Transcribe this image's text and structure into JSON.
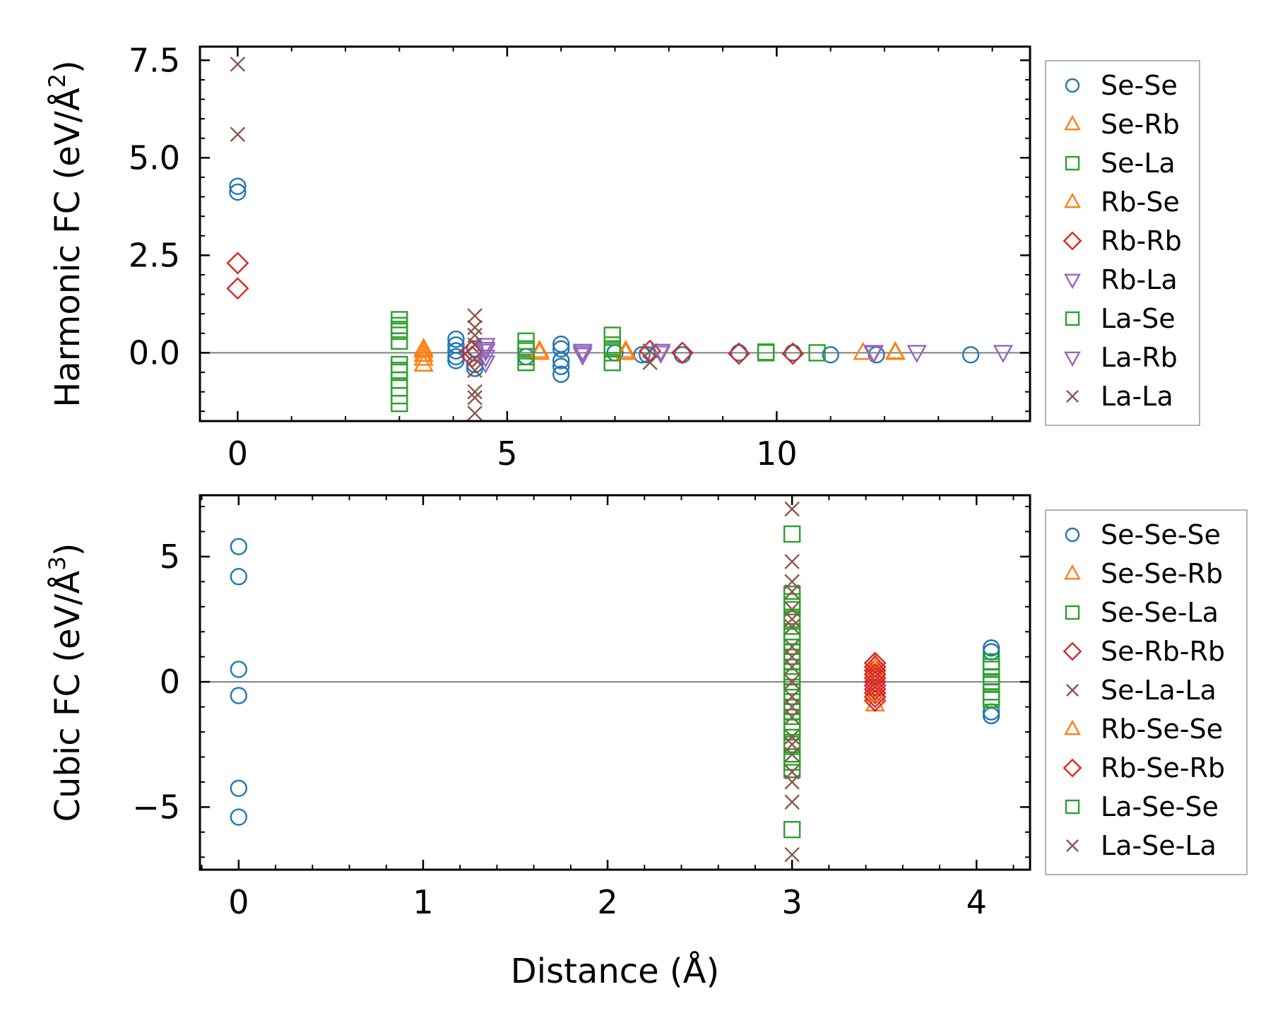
{
  "chart_data": [
    {
      "type": "scatter",
      "panel": "top",
      "ylabel": "Harmonic FC (eV/Å²)",
      "ylabel_main": "Harmonic FC (eV/Å",
      "ylabel_sup": "2",
      "ylabel_close": ")",
      "xlim": [
        -0.7,
        14.7
      ],
      "ylim": [
        -1.75,
        7.85
      ],
      "xticks": [
        0,
        5,
        10
      ],
      "xtick_labels": [
        "0",
        "5",
        "10"
      ],
      "yticks": [
        0,
        2.5,
        5,
        7.5
      ],
      "ytick_labels": [
        "0.0",
        "2.5",
        "5.0",
        "7.5"
      ],
      "zero_line": true,
      "legend": [
        "Se-Se",
        "Se-Rb",
        "Se-La",
        "Rb-Se",
        "Rb-Rb",
        "Rb-La",
        "La-Se",
        "La-Rb",
        "La-La"
      ],
      "series": [
        {
          "name": "Se-Se",
          "marker": "circle",
          "color": "#1f77b4",
          "points": [
            [
              0,
              4.27
            ],
            [
              0,
              4.12
            ],
            [
              4.05,
              0.35
            ],
            [
              4.05,
              0.2
            ],
            [
              4.05,
              0.05
            ],
            [
              4.05,
              -0.1
            ],
            [
              4.05,
              -0.2
            ],
            [
              4.4,
              -0.3
            ],
            [
              4.4,
              -0.4
            ],
            [
              4.4,
              0.1
            ],
            [
              5.35,
              -0.1
            ],
            [
              6.0,
              0.22
            ],
            [
              6.0,
              0.1
            ],
            [
              6.0,
              -0.2
            ],
            [
              6.0,
              -0.35
            ],
            [
              6.0,
              -0.55
            ],
            [
              7.0,
              0.0
            ],
            [
              7.5,
              -0.05
            ],
            [
              7.6,
              -0.05
            ],
            [
              8.25,
              -0.05
            ],
            [
              9.3,
              0.0
            ],
            [
              10.3,
              0.0
            ],
            [
              11.0,
              -0.05
            ],
            [
              11.85,
              -0.05
            ],
            [
              13.6,
              -0.05
            ]
          ]
        },
        {
          "name": "Se-Rb",
          "marker": "triangle-up",
          "color": "#ff7f0e",
          "points": [
            [
              3.45,
              0.1
            ],
            [
              3.45,
              -0.05
            ],
            [
              3.45,
              -0.15
            ],
            [
              3.45,
              -0.3
            ],
            [
              5.6,
              0.0
            ],
            [
              7.2,
              0.0
            ],
            [
              11.6,
              0.0
            ],
            [
              12.2,
              0.0
            ]
          ]
        },
        {
          "name": "Se-La",
          "marker": "square",
          "color": "#2ca02c",
          "points": [
            [
              3.0,
              0.85
            ],
            [
              3.0,
              0.7
            ],
            [
              3.0,
              0.55
            ],
            [
              3.0,
              0.3
            ],
            [
              3.0,
              -0.3
            ],
            [
              3.0,
              -0.5
            ],
            [
              3.0,
              -0.7
            ],
            [
              3.0,
              -0.9
            ],
            [
              3.0,
              -1.1
            ],
            [
              3.0,
              -1.3
            ],
            [
              5.35,
              0.3
            ],
            [
              5.35,
              0.1
            ],
            [
              5.35,
              -0.1
            ],
            [
              5.35,
              -0.25
            ],
            [
              6.95,
              0.45
            ],
            [
              6.95,
              0.2
            ],
            [
              6.95,
              0.0
            ],
            [
              6.95,
              -0.25
            ],
            [
              9.8,
              0.0
            ],
            [
              10.75,
              0.0
            ]
          ]
        },
        {
          "name": "Rb-Se",
          "marker": "triangle-up",
          "color": "#ff7f0e",
          "points": [
            [
              3.45,
              0.05
            ],
            [
              5.6,
              0.05
            ],
            [
              7.2,
              0.05
            ],
            [
              12.2,
              0.02
            ]
          ]
        },
        {
          "name": "Rb-Rb",
          "marker": "diamond",
          "color": "#d62728",
          "points": [
            [
              0,
              2.3
            ],
            [
              0,
              1.65
            ],
            [
              4.35,
              0.05
            ],
            [
              4.35,
              -0.1
            ],
            [
              7.65,
              0.05
            ],
            [
              8.25,
              0.0
            ],
            [
              9.3,
              -0.02
            ],
            [
              10.3,
              -0.02
            ]
          ]
        },
        {
          "name": "Rb-La",
          "marker": "triangle-down",
          "color": "#9467bd",
          "points": [
            [
              4.6,
              0.2
            ],
            [
              4.6,
              0.05
            ],
            [
              4.6,
              -0.1
            ],
            [
              4.6,
              -0.25
            ],
            [
              6.4,
              0.05
            ],
            [
              6.4,
              -0.05
            ],
            [
              7.85,
              0.05
            ],
            [
              11.8,
              0.02
            ],
            [
              12.6,
              0.02
            ],
            [
              14.2,
              0.02
            ]
          ]
        },
        {
          "name": "La-Se",
          "marker": "square",
          "color": "#2ca02c",
          "points": [
            [
              3.0,
              0.6
            ],
            [
              3.0,
              -0.45
            ],
            [
              5.35,
              0.05
            ],
            [
              6.95,
              0.1
            ],
            [
              9.8,
              0.02
            ]
          ]
        },
        {
          "name": "La-Rb",
          "marker": "triangle-down",
          "color": "#9467bd",
          "points": [
            [
              4.6,
              0.1
            ],
            [
              6.4,
              0.0
            ],
            [
              7.85,
              0.0
            ],
            [
              11.8,
              0.0
            ]
          ]
        },
        {
          "name": "La-La",
          "marker": "x",
          "color": "#8c564b",
          "points": [
            [
              0,
              7.4
            ],
            [
              0,
              5.6
            ],
            [
              4.4,
              0.95
            ],
            [
              4.4,
              0.65
            ],
            [
              4.4,
              0.45
            ],
            [
              4.4,
              0.2
            ],
            [
              4.4,
              -0.15
            ],
            [
              4.4,
              -0.45
            ],
            [
              4.4,
              -1.0
            ],
            [
              4.4,
              -1.15
            ],
            [
              4.4,
              -1.55
            ],
            [
              7.65,
              0.05
            ],
            [
              7.65,
              -0.25
            ]
          ]
        }
      ]
    },
    {
      "type": "scatter",
      "panel": "bottom",
      "xlabel": "Distance (Å)",
      "ylabel": "Cubic FC (eV/Å³)",
      "ylabel_main": "Cubic FC (eV/Å",
      "ylabel_sup": "3",
      "ylabel_close": ")",
      "xlim": [
        -0.21,
        4.29
      ],
      "ylim": [
        -7.5,
        7.45
      ],
      "xticks": [
        0,
        1,
        2,
        3,
        4
      ],
      "xtick_labels": [
        "0",
        "1",
        "2",
        "3",
        "4"
      ],
      "yticks": [
        -5,
        0,
        5
      ],
      "ytick_labels": [
        "−5",
        "0",
        "5"
      ],
      "zero_line": true,
      "legend": [
        "Se-Se-Se",
        "Se-Se-Rb",
        "Se-Se-La",
        "Se-Rb-Rb",
        "Se-La-La",
        "Rb-Se-Se",
        "Rb-Se-Rb",
        "La-Se-Se",
        "La-Se-La"
      ],
      "series": [
        {
          "name": "Se-Se-Se",
          "marker": "circle",
          "color": "#1f77b4",
          "points": [
            [
              0,
              5.4
            ],
            [
              0,
              4.2
            ],
            [
              0,
              0.5
            ],
            [
              0,
              -0.55
            ],
            [
              0,
              -4.25
            ],
            [
              0,
              -5.4
            ],
            [
              4.08,
              1.35
            ],
            [
              4.08,
              1.2
            ],
            [
              4.08,
              -1.2
            ],
            [
              4.08,
              -1.35
            ]
          ]
        },
        {
          "name": "Se-Se-Rb",
          "marker": "triangle-up",
          "color": "#ff7f0e",
          "points": [
            [
              3.45,
              0.7
            ],
            [
              3.45,
              0.3
            ],
            [
              3.45,
              -0.3
            ],
            [
              3.45,
              -0.9
            ]
          ]
        },
        {
          "name": "Se-Se-La",
          "marker": "square",
          "color": "#2ca02c",
          "points": [
            [
              3.0,
              5.9
            ],
            [
              3.0,
              3.5
            ],
            [
              3.0,
              3.0
            ],
            [
              3.0,
              2.5
            ],
            [
              3.0,
              2.0
            ],
            [
              3.0,
              1.6
            ],
            [
              3.0,
              1.2
            ],
            [
              3.0,
              0.8
            ],
            [
              3.0,
              0.4
            ],
            [
              3.0,
              0.0
            ],
            [
              3.0,
              -0.4
            ],
            [
              3.0,
              -0.8
            ],
            [
              3.0,
              -1.2
            ],
            [
              3.0,
              -1.6
            ],
            [
              3.0,
              -2.0
            ],
            [
              3.0,
              -2.5
            ],
            [
              3.0,
              -3.0
            ],
            [
              3.0,
              -3.5
            ],
            [
              3.0,
              -5.9
            ],
            [
              4.08,
              0.8
            ],
            [
              4.08,
              0.5
            ],
            [
              4.08,
              0.2
            ],
            [
              4.08,
              -0.1
            ],
            [
              4.08,
              -0.4
            ],
            [
              4.08,
              -0.7
            ]
          ]
        },
        {
          "name": "Se-Rb-Rb",
          "marker": "diamond",
          "color": "#d62728",
          "points": [
            [
              3.45,
              0.75
            ],
            [
              3.45,
              0.45
            ],
            [
              3.45,
              0.15
            ],
            [
              3.45,
              -0.15
            ],
            [
              3.45,
              -0.45
            ],
            [
              3.45,
              -0.75
            ]
          ]
        },
        {
          "name": "Se-La-La",
          "marker": "x",
          "color": "#8c564b",
          "points": [
            [
              3.0,
              6.9
            ],
            [
              3.0,
              4.8
            ],
            [
              3.0,
              4.0
            ],
            [
              3.0,
              2.9
            ],
            [
              3.0,
              2.2
            ],
            [
              3.0,
              1.4
            ],
            [
              3.0,
              0.6
            ],
            [
              3.0,
              -0.6
            ],
            [
              3.0,
              -1.4
            ],
            [
              3.0,
              -2.2
            ],
            [
              3.0,
              -2.9
            ],
            [
              3.0,
              -4.0
            ],
            [
              3.0,
              -4.8
            ],
            [
              3.0,
              -6.9
            ]
          ]
        },
        {
          "name": "Rb-Se-Se",
          "marker": "triangle-up",
          "color": "#ff7f0e",
          "points": [
            [
              3.45,
              0.5
            ],
            [
              3.45,
              -0.5
            ]
          ]
        },
        {
          "name": "Rb-Se-Rb",
          "marker": "diamond",
          "color": "#d62728",
          "points": [
            [
              3.45,
              0.6
            ],
            [
              3.45,
              0.3
            ],
            [
              3.45,
              0.0
            ],
            [
              3.45,
              -0.3
            ],
            [
              3.45,
              -0.6
            ]
          ]
        },
        {
          "name": "La-Se-Se",
          "marker": "square",
          "color": "#2ca02c",
          "points": [
            [
              3.0,
              3.2
            ],
            [
              3.0,
              1.8
            ],
            [
              3.0,
              0.2
            ],
            [
              3.0,
              -1.8
            ],
            [
              3.0,
              -3.2
            ],
            [
              4.08,
              0.6
            ],
            [
              4.08,
              0.0
            ],
            [
              4.08,
              -0.6
            ]
          ]
        },
        {
          "name": "La-Se-La",
          "marker": "x",
          "color": "#8c564b",
          "points": [
            [
              3.0,
              3.6
            ],
            [
              3.0,
              2.5
            ],
            [
              3.0,
              1.0
            ],
            [
              3.0,
              0.0
            ],
            [
              3.0,
              -1.0
            ],
            [
              3.0,
              -2.5
            ],
            [
              3.0,
              -3.6
            ]
          ]
        }
      ]
    }
  ]
}
